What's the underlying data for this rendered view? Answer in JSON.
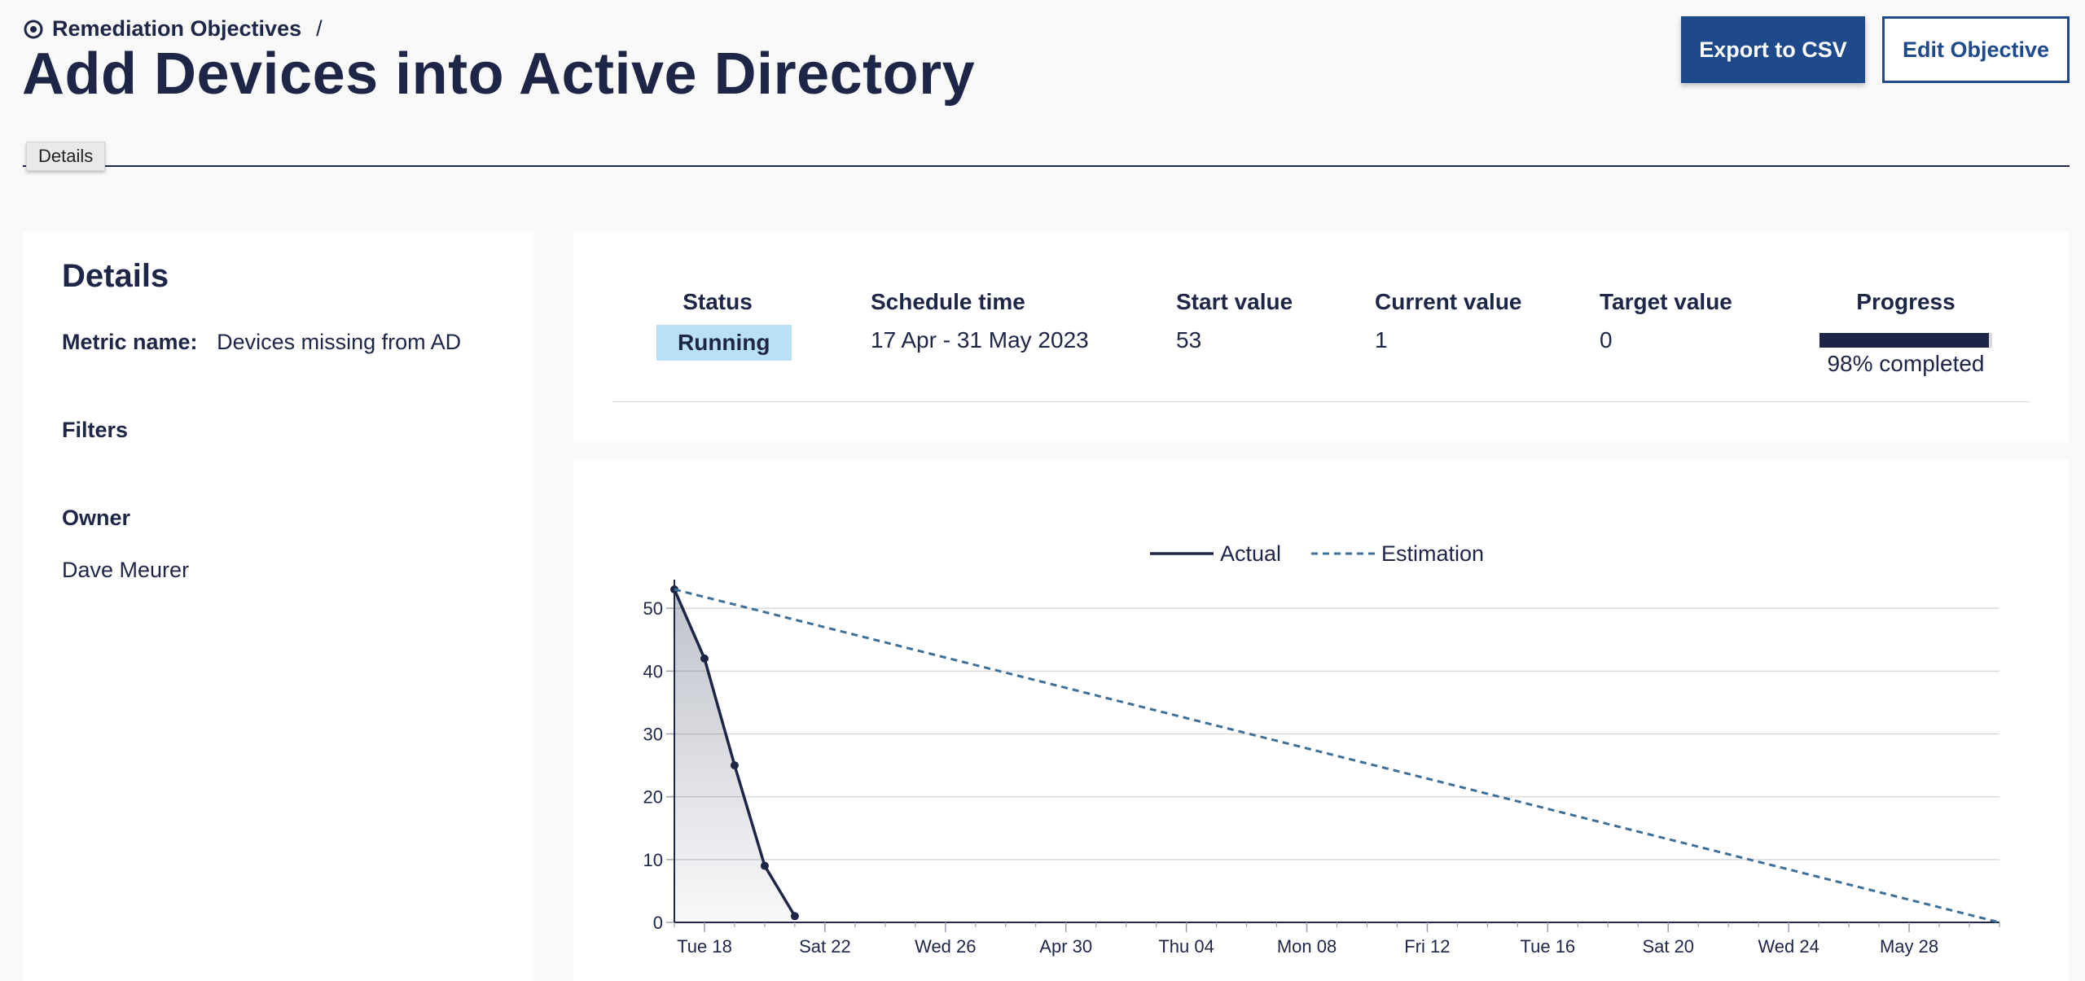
{
  "breadcrumb": {
    "parent": "Remediation Objectives",
    "separator": "/",
    "icon": "target-icon"
  },
  "page": {
    "title": "Add Devices into Active Directory"
  },
  "toolbar": {
    "export_label": "Export to CSV",
    "edit_label": "Edit Objective"
  },
  "tabs": [
    {
      "label": "Details",
      "active": true
    }
  ],
  "details": {
    "heading": "Details",
    "metric_label": "Metric name:",
    "metric_value": "Devices missing from AD",
    "filters_label": "Filters",
    "owner_label": "Owner",
    "owner_value": "Dave Meurer"
  },
  "summary": {
    "status_header": "Status",
    "status_value": "Running",
    "schedule_header": "Schedule time",
    "schedule_value": "17 Apr - 31 May 2023",
    "start_header": "Start value",
    "start_value": "53",
    "current_header": "Current value",
    "current_value": "1",
    "target_header": "Target value",
    "target_value": "0",
    "progress_header": "Progress",
    "progress_value": 0.98,
    "progress_text": "98% completed"
  },
  "colors": {
    "primary": "#1e4a8c",
    "dark": "#1d2647",
    "status_bg": "#b9e0f5",
    "estimation": "#3d6f98"
  },
  "chart_data": {
    "type": "line",
    "x_tick_labels": [
      "Tue 18",
      "Sat 22",
      "Wed 26",
      "Apr 30",
      "Thu 04",
      "Mon 08",
      "Fri 12",
      "Tue 16",
      "Sat 20",
      "Wed 24",
      "May 28"
    ],
    "x_tick_dates": [
      "2023-04-18",
      "2023-04-22",
      "2023-04-26",
      "2023-04-30",
      "2023-05-04",
      "2023-05-08",
      "2023-05-12",
      "2023-05-16",
      "2023-05-20",
      "2023-05-24",
      "2023-05-28"
    ],
    "xlim": [
      "2023-04-17",
      "2023-05-31"
    ],
    "ylim": [
      0,
      53
    ],
    "y_ticks": [
      0,
      10,
      20,
      30,
      40,
      50
    ],
    "grid": true,
    "legend_position": "top-center",
    "series": [
      {
        "name": "Actual",
        "style": "solid",
        "area": true,
        "points": [
          {
            "x": "2023-04-17",
            "y": 53
          },
          {
            "x": "2023-04-18",
            "y": 42
          },
          {
            "x": "2023-04-19",
            "y": 25
          },
          {
            "x": "2023-04-20",
            "y": 9
          },
          {
            "x": "2023-04-21",
            "y": 1
          }
        ]
      },
      {
        "name": "Estimation",
        "style": "dashed",
        "points": [
          {
            "x": "2023-04-17",
            "y": 53
          },
          {
            "x": "2023-05-31",
            "y": 0
          }
        ]
      }
    ]
  }
}
